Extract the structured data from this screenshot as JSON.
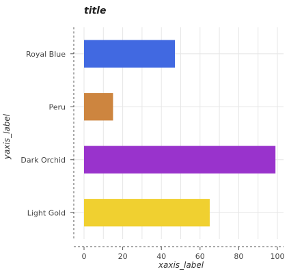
{
  "chart_data": {
    "type": "bar",
    "orientation": "horizontal",
    "title": "title",
    "xlabel": "xaxis_label",
    "ylabel": "yaxis_label",
    "categories": [
      "Light Gold",
      "Dark Orchid",
      "Peru",
      "Royal Blue"
    ],
    "values": [
      65,
      99,
      15,
      47
    ],
    "colors": [
      "#f0d030",
      "#9933cc",
      "#cd853f",
      "#4169e1"
    ],
    "xlim": [
      0,
      100
    ],
    "xticks": [
      0,
      20,
      40,
      60,
      80,
      100
    ],
    "grid": true,
    "legend": "none"
  }
}
